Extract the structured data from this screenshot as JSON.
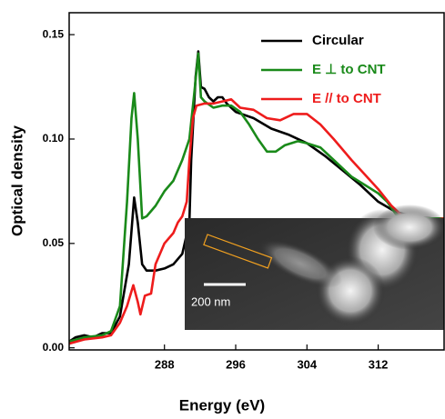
{
  "chart_data": {
    "type": "line",
    "xlabel": "Energy (eV)",
    "ylabel": "Optical density",
    "xlim": [
      277.3,
      319.4
    ],
    "ylim": [
      -0.001,
      0.1605
    ],
    "xticks": [
      288,
      296,
      304,
      312
    ],
    "yticks": [
      {
        "value": 0,
        "label": "0.00"
      },
      {
        "value": 0.05,
        "label": "0.05"
      },
      {
        "value": 0.1,
        "label": "0.10"
      },
      {
        "value": 0.15,
        "label": "0.15"
      }
    ],
    "legend": "upper right",
    "inset_scale_label": "200 nm",
    "series": [
      {
        "name": "Circular",
        "color": "#000000",
        "x": [
          277.3,
          278,
          279,
          280,
          281,
          282,
          283,
          284,
          284.6,
          285,
          285.5,
          286,
          287,
          288,
          289,
          290,
          290.8,
          291,
          291.5,
          291.8,
          292.1,
          292.5,
          293,
          293.5,
          294,
          294.5,
          295,
          296,
          298,
          300,
          302,
          304,
          306,
          308,
          310,
          312,
          314,
          316,
          318,
          319.4
        ],
        "values": [
          0.003,
          0.005,
          0.006,
          0.005,
          0.007,
          0.007,
          0.015,
          0.04,
          0.072,
          0.06,
          0.04,
          0.037,
          0.037,
          0.038,
          0.04,
          0.045,
          0.06,
          0.09,
          0.13,
          0.142,
          0.125,
          0.124,
          0.12,
          0.118,
          0.12,
          0.12,
          0.117,
          0.113,
          0.11,
          0.105,
          0.102,
          0.098,
          0.092,
          0.085,
          0.078,
          0.07,
          0.065,
          0.063,
          0.062,
          0.062
        ]
      },
      {
        "name": "E ⊥ to CNT",
        "color": "#1a8a1a",
        "x": [
          277.3,
          279,
          281,
          282,
          283,
          283.8,
          284.3,
          284.6,
          285,
          285.5,
          286,
          287,
          288,
          289,
          290,
          290.8,
          291.3,
          291.8,
          292.1,
          292.5,
          293.5,
          294.5,
          295.5,
          296.5,
          297.5,
          298.5,
          299.5,
          300.5,
          301.5,
          303,
          304,
          305.5,
          307,
          309,
          310.5,
          312,
          313,
          314,
          315,
          316,
          318,
          319.4
        ],
        "values": [
          0.003,
          0.005,
          0.006,
          0.008,
          0.02,
          0.07,
          0.11,
          0.122,
          0.1,
          0.062,
          0.063,
          0.068,
          0.075,
          0.08,
          0.09,
          0.1,
          0.12,
          0.141,
          0.12,
          0.118,
          0.115,
          0.116,
          0.116,
          0.113,
          0.107,
          0.1,
          0.094,
          0.094,
          0.097,
          0.099,
          0.098,
          0.096,
          0.09,
          0.082,
          0.078,
          0.074,
          0.07,
          0.064,
          0.062,
          0.062,
          0.062,
          0.062
        ]
      },
      {
        "name": "E // to CNT",
        "color": "#ee1c1c",
        "x": [
          277.3,
          279,
          281,
          282,
          283,
          283.8,
          284.5,
          285,
          285.3,
          285.8,
          286.5,
          287,
          287.5,
          288,
          289,
          289.5,
          290,
          290.5,
          290.8,
          291.2,
          291.6,
          292.5,
          293.5,
          294.5,
          295.5,
          296.5,
          298,
          299.5,
          301,
          302.5,
          304,
          305.5,
          307,
          309,
          310.5,
          312,
          313.5,
          315,
          316.5,
          318,
          319.4
        ],
        "values": [
          0.002,
          0.004,
          0.005,
          0.006,
          0.012,
          0.02,
          0.03,
          0.022,
          0.016,
          0.025,
          0.026,
          0.04,
          0.045,
          0.05,
          0.055,
          0.06,
          0.063,
          0.07,
          0.09,
          0.11,
          0.116,
          0.117,
          0.117,
          0.118,
          0.119,
          0.115,
          0.114,
          0.11,
          0.109,
          0.112,
          0.112,
          0.107,
          0.1,
          0.09,
          0.083,
          0.076,
          0.068,
          0.062,
          0.061,
          0.061,
          0.062
        ]
      }
    ]
  }
}
